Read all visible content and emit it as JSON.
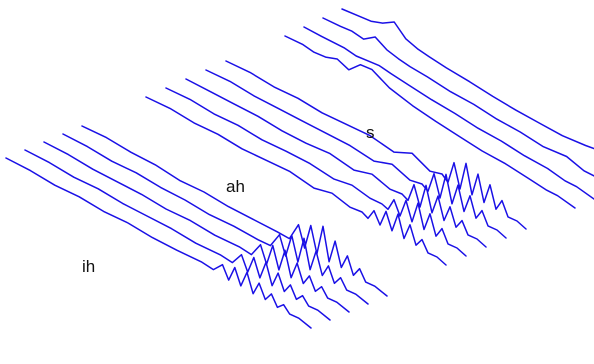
{
  "chart_data": {
    "type": "line",
    "title": "",
    "xlabel": "",
    "ylabel": "",
    "groups": [
      {
        "label": "ih",
        "traces": [
          {
            "x": [
              0.0,
              0.08,
              0.16,
              0.24,
              0.32,
              0.4,
              0.48,
              0.56,
              0.64,
              0.68,
              0.71,
              0.73,
              0.75,
              0.77,
              0.79,
              0.81,
              0.83,
              0.85,
              0.87,
              0.89,
              0.91,
              0.93,
              0.96,
              1.0
            ],
            "y": [
              0,
              1,
              0,
              2,
              1,
              3,
              2,
              3,
              5,
              4,
              14,
              2,
              18,
              3,
              20,
              2,
              16,
              3,
              12,
              2,
              8,
              2,
              3,
              0
            ]
          },
          {
            "x": [
              0.0,
              0.08,
              0.16,
              0.24,
              0.32,
              0.4,
              0.48,
              0.56,
              0.64,
              0.68,
              0.71,
              0.73,
              0.75,
              0.77,
              0.79,
              0.81,
              0.83,
              0.85,
              0.87,
              0.89,
              0.91,
              0.93,
              0.96,
              1.0
            ],
            "y": [
              0,
              1,
              0,
              2,
              1,
              2,
              3,
              2,
              4,
              3,
              16,
              2,
              20,
              3,
              22,
              2,
              18,
              3,
              13,
              2,
              9,
              2,
              3,
              0
            ]
          },
          {
            "x": [
              0.0,
              0.08,
              0.16,
              0.24,
              0.32,
              0.4,
              0.48,
              0.56,
              0.64,
              0.68,
              0.71,
              0.73,
              0.75,
              0.77,
              0.79,
              0.81,
              0.83,
              0.85,
              0.87,
              0.89,
              0.91,
              0.93,
              0.96,
              1.0
            ],
            "y": [
              0,
              1,
              0,
              1,
              2,
              1,
              3,
              2,
              4,
              3,
              18,
              2,
              24,
              3,
              26,
              2,
              20,
              3,
              14,
              2,
              10,
              2,
              3,
              0
            ]
          },
          {
            "x": [
              0.0,
              0.08,
              0.16,
              0.24,
              0.32,
              0.4,
              0.48,
              0.56,
              0.64,
              0.68,
              0.71,
              0.73,
              0.75,
              0.77,
              0.79,
              0.81,
              0.83,
              0.85,
              0.87,
              0.89,
              0.91,
              0.93,
              0.96,
              1.0
            ],
            "y": [
              0,
              1,
              0,
              2,
              1,
              2,
              1,
              3,
              3,
              4,
              20,
              2,
              26,
              3,
              30,
              2,
              24,
              3,
              16,
              2,
              11,
              2,
              3,
              0
            ]
          },
          {
            "x": [
              0.0,
              0.08,
              0.16,
              0.24,
              0.32,
              0.4,
              0.48,
              0.56,
              0.64,
              0.68,
              0.71,
              0.73,
              0.75,
              0.77,
              0.79,
              0.81,
              0.83,
              0.85,
              0.87,
              0.89,
              0.91,
              0.93,
              0.96,
              1.0
            ],
            "y": [
              0,
              2,
              1,
              2,
              0,
              2,
              1,
              2,
              3,
              3,
              22,
              2,
              28,
              3,
              34,
              2,
              26,
              3,
              18,
              2,
              12,
              2,
              3,
              0
            ]
          }
        ]
      },
      {
        "label": "ah",
        "traces": [
          {
            "x": [
              0.0,
              0.08,
              0.16,
              0.24,
              0.32,
              0.4,
              0.48,
              0.56,
              0.62,
              0.68,
              0.72,
              0.74,
              0.76,
              0.78,
              0.8,
              0.82,
              0.84,
              0.86,
              0.88,
              0.9,
              0.92,
              0.94,
              0.97,
              1.0
            ],
            "y": [
              0,
              2,
              1,
              3,
              2,
              4,
              6,
              3,
              8,
              4,
              6,
              3,
              14,
              3,
              20,
              4,
              24,
              3,
              20,
              3,
              12,
              2,
              3,
              0
            ]
          },
          {
            "x": [
              0.0,
              0.08,
              0.16,
              0.24,
              0.32,
              0.4,
              0.48,
              0.56,
              0.62,
              0.68,
              0.72,
              0.74,
              0.76,
              0.78,
              0.8,
              0.82,
              0.84,
              0.86,
              0.88,
              0.9,
              0.92,
              0.94,
              0.97,
              1.0
            ],
            "y": [
              0,
              2,
              1,
              3,
              2,
              4,
              5,
              3,
              7,
              4,
              5,
              3,
              16,
              3,
              22,
              4,
              26,
              3,
              22,
              3,
              14,
              2,
              3,
              0
            ]
          },
          {
            "x": [
              0.0,
              0.08,
              0.16,
              0.24,
              0.32,
              0.4,
              0.48,
              0.56,
              0.62,
              0.68,
              0.72,
              0.74,
              0.76,
              0.78,
              0.8,
              0.82,
              0.84,
              0.86,
              0.88,
              0.9,
              0.92,
              0.94,
              0.97,
              1.0
            ],
            "y": [
              0,
              1,
              2,
              3,
              2,
              3,
              6,
              3,
              9,
              4,
              6,
              3,
              22,
              3,
              28,
              4,
              24,
              3,
              20,
              3,
              13,
              2,
              3,
              0
            ]
          },
          {
            "x": [
              0.0,
              0.08,
              0.16,
              0.24,
              0.32,
              0.4,
              0.48,
              0.56,
              0.62,
              0.68,
              0.72,
              0.74,
              0.76,
              0.78,
              0.8,
              0.82,
              0.84,
              0.86,
              0.88,
              0.9,
              0.92,
              0.94,
              0.97,
              1.0
            ],
            "y": [
              0,
              2,
              1,
              2,
              3,
              4,
              5,
              3,
              10,
              4,
              7,
              3,
              24,
              3,
              30,
              4,
              26,
              3,
              22,
              3,
              14,
              2,
              3,
              0
            ]
          },
          {
            "x": [
              0.0,
              0.08,
              0.16,
              0.24,
              0.32,
              0.4,
              0.48,
              0.56,
              0.62,
              0.68,
              0.72,
              0.74,
              0.76,
              0.78,
              0.8,
              0.82,
              0.84,
              0.86,
              0.88,
              0.9,
              0.92,
              0.94,
              0.97,
              1.0
            ],
            "y": [
              0,
              2,
              1,
              3,
              2,
              4,
              6,
              3,
              12,
              4,
              8,
              3,
              26,
              3,
              32,
              4,
              28,
              3,
              24,
              3,
              15,
              2,
              3,
              0
            ]
          }
        ]
      },
      {
        "label": "s",
        "traces": [
          {
            "x": [
              0.0,
              0.06,
              0.1,
              0.14,
              0.18,
              0.22,
              0.26,
              0.3,
              0.36,
              0.44,
              0.52,
              0.6,
              0.68,
              0.76,
              0.84,
              0.9,
              0.94,
              1.0
            ],
            "y": [
              0,
              2,
              1,
              3,
              8,
              4,
              16,
              18,
              10,
              6,
              4,
              3,
              2,
              3,
              2,
              1,
              2,
              0
            ]
          },
          {
            "x": [
              0.0,
              0.06,
              0.1,
              0.14,
              0.18,
              0.22,
              0.26,
              0.3,
              0.36,
              0.44,
              0.52,
              0.6,
              0.68,
              0.76,
              0.84,
              0.9,
              0.94,
              1.0
            ],
            "y": [
              0,
              1,
              2,
              3,
              2,
              4,
              6,
              5,
              4,
              3,
              3,
              2,
              3,
              2,
              3,
              1,
              2,
              0
            ]
          },
          {
            "x": [
              0.0,
              0.06,
              0.1,
              0.14,
              0.18,
              0.22,
              0.26,
              0.3,
              0.36,
              0.44,
              0.52,
              0.6,
              0.68,
              0.76,
              0.84,
              0.9,
              0.94,
              1.0
            ],
            "y": [
              0,
              2,
              4,
              3,
              12,
              6,
              4,
              3,
              3,
              2,
              3,
              2,
              3,
              2,
              6,
              2,
              3,
              0
            ]
          },
          {
            "x": [
              0.0,
              0.06,
              0.1,
              0.14,
              0.18,
              0.22,
              0.26,
              0.3,
              0.36,
              0.44,
              0.52,
              0.6,
              0.68,
              0.76,
              0.84,
              0.9,
              0.94,
              1.0
            ],
            "y": [
              0,
              3,
              5,
              10,
              18,
              8,
              5,
              4,
              3,
              3,
              2,
              2,
              3,
              4,
              8,
              12,
              3,
              0
            ]
          }
        ]
      }
    ]
  }
}
